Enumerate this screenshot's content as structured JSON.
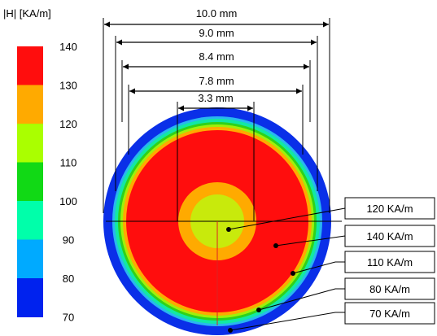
{
  "legend": {
    "title": "|H| [KA/m]",
    "bands": [
      {
        "label": "140",
        "color": "#ff0d0d"
      },
      {
        "label": "130",
        "color": "#ffaa00"
      },
      {
        "label": "120",
        "color": "#aaff00"
      },
      {
        "label": "110",
        "color": "#11d915"
      },
      {
        "label": "100",
        "color": "#00ffaa"
      },
      {
        "label": "90",
        "color": "#00aaff"
      },
      {
        "label": "80",
        "color": "#0022ee"
      },
      {
        "label": "70",
        "color": ""
      }
    ]
  },
  "dimensions": [
    {
      "label": "10.0 mm"
    },
    {
      "label": "9.0 mm"
    },
    {
      "label": "8.4 mm"
    },
    {
      "label": "7.8 mm"
    },
    {
      "label": "3.3 mm"
    }
  ],
  "callouts": [
    {
      "label": "120 KA/m"
    },
    {
      "label": "140 KA/m"
    },
    {
      "label": "110 KA/m"
    },
    {
      "label": "80 KA/m"
    },
    {
      "label": "70 KA/m"
    }
  ]
}
